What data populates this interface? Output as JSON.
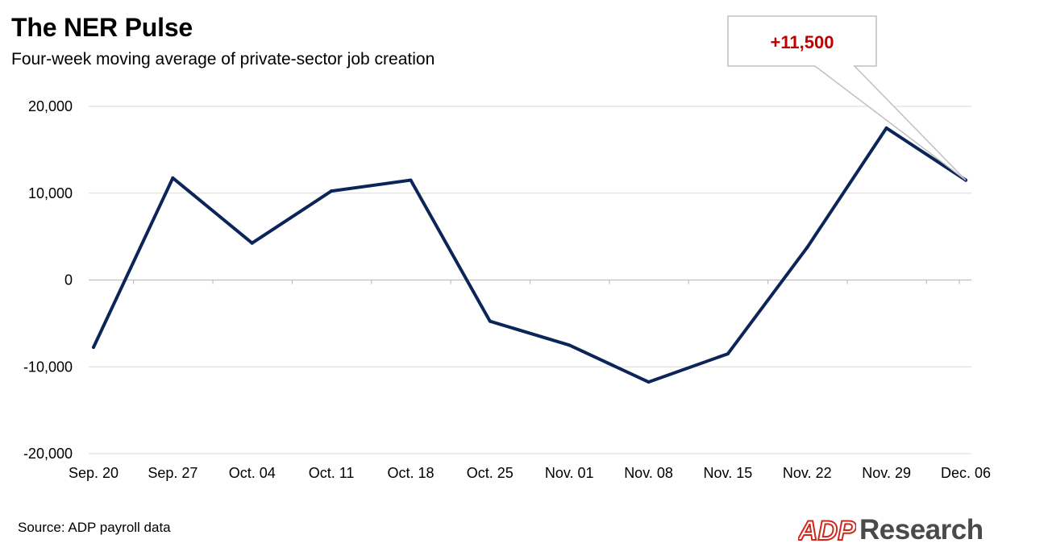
{
  "header": {
    "title": "The NER Pulse",
    "subtitle": "Four-week moving average of private-sector job creation"
  },
  "footer": {
    "source": "Source: ADP payroll data",
    "logo_mark": "ADP",
    "logo_text": "Research"
  },
  "colors": {
    "line": "#0b2559",
    "grid": "#d9d9d9",
    "callout_text": "#c00000",
    "callout_border": "#bfbfbf",
    "logo_red": "#d0271d"
  },
  "chart_data": {
    "type": "line",
    "title": "The NER Pulse",
    "subtitle": "Four-week moving average of private-sector job creation",
    "categories": [
      "Sep. 20",
      "Sep. 27",
      "Oct. 04",
      "Oct. 11",
      "Oct. 18",
      "Oct. 25",
      "Nov. 01",
      "Nov. 08",
      "Nov. 15",
      "Nov. 22",
      "Nov. 29",
      "Dec. 06"
    ],
    "series": [
      {
        "values": [
          -7750,
          11750,
          4250,
          10250,
          11500,
          -4750,
          -7500,
          -11750,
          -8500,
          3750,
          17500,
          11500
        ]
      }
    ],
    "ylim": [
      -20000,
      20000
    ],
    "yticks": [
      20000,
      10000,
      0,
      -10000,
      -20000
    ],
    "ytick_labels": [
      "20,000",
      "10,000",
      "0",
      "-10,000",
      "-20,000"
    ],
    "grid": true,
    "annotation": {
      "label": "+11,500",
      "category": "Dec. 06",
      "value": 11500
    }
  }
}
